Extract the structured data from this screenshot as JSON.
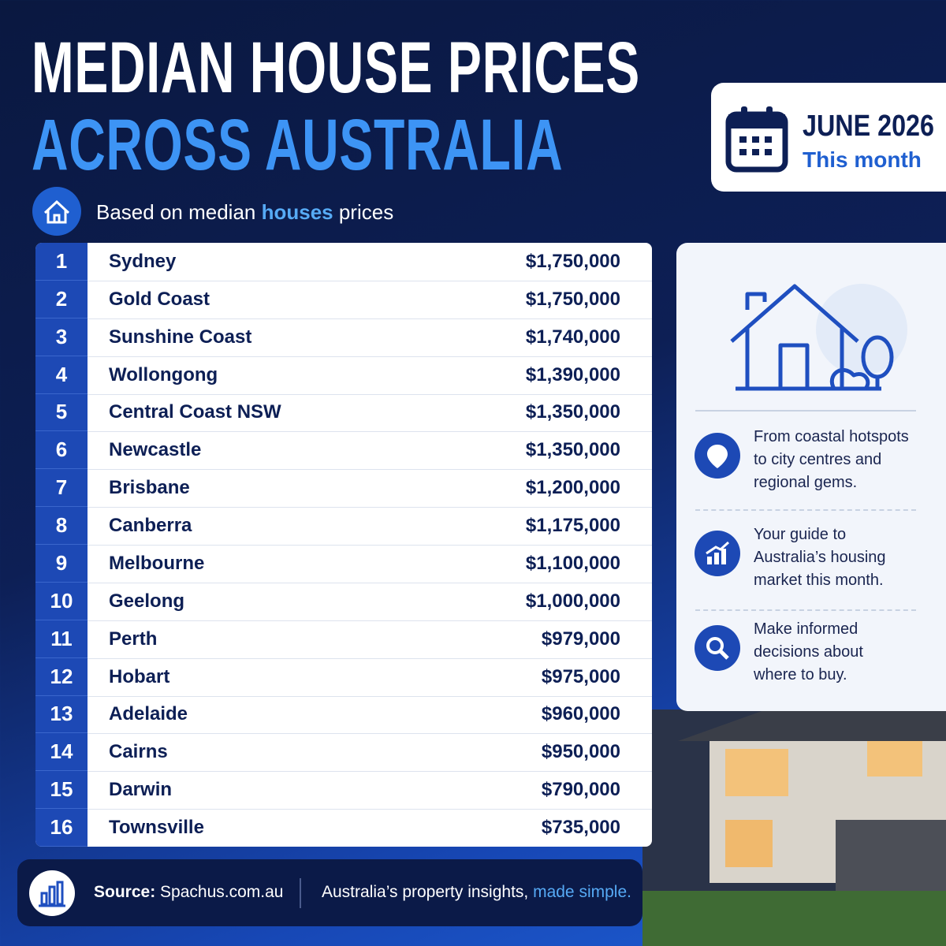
{
  "header": {
    "title_line1": "MEDIAN HOUSE PRICES",
    "title_line2": "ACROSS AUSTRALIA",
    "subtitle": [
      "Based on median ",
      "houses",
      " prices"
    ]
  },
  "badge": {
    "date": "JUNE 2026",
    "label": "This month"
  },
  "table": {
    "rows": [
      [
        1,
        "Sydney",
        "$1,750,000"
      ],
      [
        2,
        "Gold Coast",
        "$1,750,000"
      ],
      [
        3,
        "Sunshine Coast",
        "$1,740,000"
      ],
      [
        4,
        "Wollongong",
        "$1,390,000"
      ],
      [
        5,
        "Central Coast NSW",
        "$1,350,000"
      ],
      [
        6,
        "Newcastle",
        "$1,350,000"
      ],
      [
        7,
        "Brisbane",
        "$1,200,000"
      ],
      [
        8,
        "Canberra",
        "$1,175,000"
      ],
      [
        9,
        "Melbourne",
        "$1,100,000"
      ],
      [
        10,
        "Geelong",
        "$1,000,000"
      ],
      [
        11,
        "Perth",
        "$979,000"
      ],
      [
        12,
        "Hobart",
        "$975,000"
      ],
      [
        13,
        "Adelaide",
        "$960,000"
      ],
      [
        14,
        "Cairns",
        "$950,000"
      ],
      [
        15,
        "Darwin",
        "$790,000"
      ],
      [
        16,
        "Townsville",
        "$735,000"
      ]
    ]
  },
  "panel": {
    "items": [
      [
        "From coastal hotspots",
        "to city centres and",
        "regional gems."
      ],
      [
        "Your guide to",
        "Australia’s housing",
        "market this month."
      ],
      [
        "Make informed",
        "decisions about",
        "where to buy."
      ]
    ]
  },
  "footer": {
    "source_label": "Source:",
    "source": "Spachus.com.au",
    "tagline": [
      "Australia’s property insights, ",
      "made simple."
    ]
  }
}
